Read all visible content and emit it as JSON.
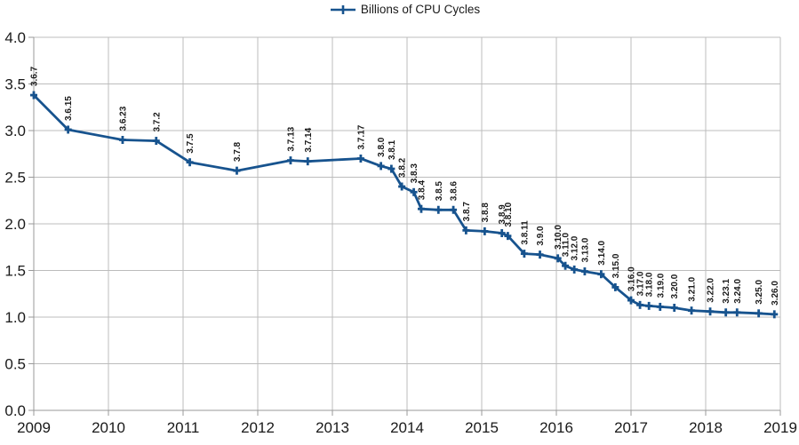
{
  "legend": {
    "label": "Billions of CPU Cycles"
  },
  "chart_data": {
    "type": "line",
    "title": "",
    "xlabel": "",
    "ylabel": "",
    "legend_entries": [
      "Billions of CPU Cycles"
    ],
    "legend_position": "top-center",
    "grid": true,
    "x_axis": {
      "min": 2009,
      "max": 2019,
      "tick_labels": [
        "2009",
        "2010",
        "2011",
        "2012",
        "2013",
        "2014",
        "2015",
        "2016",
        "2017",
        "2018",
        "2019"
      ]
    },
    "y_axis": {
      "min": 0.0,
      "max": 4.0,
      "step": 0.5,
      "tick_labels": [
        "0.0",
        "0.5",
        "1.0",
        "1.5",
        "2.0",
        "2.5",
        "3.0",
        "3.5",
        "4.0"
      ]
    },
    "colors": {
      "series": "#17538e",
      "grid": "#bcbcbc",
      "axis": "#999999",
      "text": "#1a1a1a",
      "background": "#ffffff"
    },
    "series": [
      {
        "name": "Billions of CPU Cycles",
        "color": "#17538e",
        "marker": "plus",
        "points": [
          {
            "label": "3.6.7",
            "x": 2009.0,
            "y": 3.38
          },
          {
            "label": "3.6.15",
            "x": 2009.46,
            "y": 3.01
          },
          {
            "label": "3.6.23",
            "x": 2010.19,
            "y": 2.9
          },
          {
            "label": "3.7.2",
            "x": 2010.64,
            "y": 2.89
          },
          {
            "label": "3.7.5",
            "x": 2011.09,
            "y": 2.66
          },
          {
            "label": "3.7.8",
            "x": 2011.72,
            "y": 2.57
          },
          {
            "label": "3.7.13",
            "x": 2012.44,
            "y": 2.68
          },
          {
            "label": "3.7.14",
            "x": 2012.67,
            "y": 2.67
          },
          {
            "label": "3.7.17",
            "x": 2013.38,
            "y": 2.7
          },
          {
            "label": "3.8.0",
            "x": 2013.65,
            "y": 2.62
          },
          {
            "label": "3.8.1",
            "x": 2013.79,
            "y": 2.59
          },
          {
            "label": "3.8.2",
            "x": 2013.93,
            "y": 2.4
          },
          {
            "label": "3.8.3",
            "x": 2014.09,
            "y": 2.34
          },
          {
            "label": "3.8.4",
            "x": 2014.19,
            "y": 2.16
          },
          {
            "label": "3.8.5",
            "x": 2014.42,
            "y": 2.15
          },
          {
            "label": "3.8.6",
            "x": 2014.62,
            "y": 2.15
          },
          {
            "label": "3.8.7",
            "x": 2014.79,
            "y": 1.93
          },
          {
            "label": "3.8.8",
            "x": 2015.04,
            "y": 1.92
          },
          {
            "label": "3.8.9",
            "x": 2015.27,
            "y": 1.9
          },
          {
            "label": "3.8.10",
            "x": 2015.35,
            "y": 1.87
          },
          {
            "label": "3.8.11",
            "x": 2015.57,
            "y": 1.68
          },
          {
            "label": "3.9.0",
            "x": 2015.78,
            "y": 1.67
          },
          {
            "label": "3.10.0",
            "x": 2016.02,
            "y": 1.63
          },
          {
            "label": "3.11.0",
            "x": 2016.12,
            "y": 1.55
          },
          {
            "label": "3.12.0",
            "x": 2016.24,
            "y": 1.51
          },
          {
            "label": "3.13.0",
            "x": 2016.38,
            "y": 1.49
          },
          {
            "label": "3.14.0",
            "x": 2016.6,
            "y": 1.46
          },
          {
            "label": "3.15.0",
            "x": 2016.79,
            "y": 1.32
          },
          {
            "label": "3.16.0",
            "x": 2017.0,
            "y": 1.18
          },
          {
            "label": "3.17.0",
            "x": 2017.12,
            "y": 1.13
          },
          {
            "label": "3.18.0",
            "x": 2017.24,
            "y": 1.12
          },
          {
            "label": "3.19.0",
            "x": 2017.39,
            "y": 1.11
          },
          {
            "label": "3.20.0",
            "x": 2017.58,
            "y": 1.1
          },
          {
            "label": "3.21.0",
            "x": 2017.81,
            "y": 1.07
          },
          {
            "label": "3.22.0",
            "x": 2018.06,
            "y": 1.06
          },
          {
            "label": "3.23.1",
            "x": 2018.27,
            "y": 1.05
          },
          {
            "label": "3.24.0",
            "x": 2018.42,
            "y": 1.05
          },
          {
            "label": "3.25.0",
            "x": 2018.71,
            "y": 1.04
          },
          {
            "label": "3.26.0",
            "x": 2018.92,
            "y": 1.03
          }
        ]
      }
    ]
  }
}
